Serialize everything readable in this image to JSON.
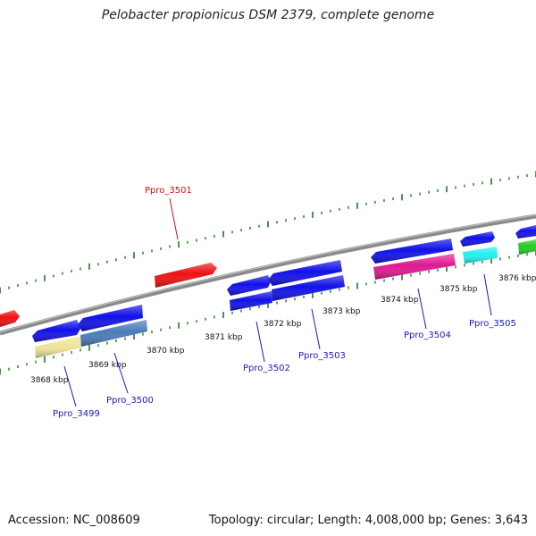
{
  "title": "Pelobacter propionicus DSM 2379, complete genome",
  "footer": {
    "accession": "Accession: NC_008609",
    "summary": "Topology: circular; Length: 4,008,000 bp; Genes: 3,643"
  },
  "kbp_labels": [
    "3868 kbp",
    "3869 kbp",
    "3870 kbp",
    "3871 kbp",
    "3872 kbp",
    "3873 kbp",
    "3874 kbp",
    "3875 kbp",
    "3876 kbp"
  ],
  "gene_labels": [
    {
      "name": "Ppro_3499",
      "color": "#1a1ab0"
    },
    {
      "name": "Ppro_3500",
      "color": "#1a1ab0"
    },
    {
      "name": "Ppro_3501",
      "color": "#cc1111"
    },
    {
      "name": "Ppro_3502",
      "color": "#1a1ab0"
    },
    {
      "name": "Ppro_3503",
      "color": "#1a1ab0"
    },
    {
      "name": "Ppro_3504",
      "color": "#1a1ab0"
    },
    {
      "name": "Ppro_3505",
      "color": "#1a1ab0"
    }
  ],
  "colors": {
    "backbone": "#8a8a8a",
    "ticks": "#1e7a1e",
    "blue_gene": "#1010e8",
    "red_gene": "#ee1111",
    "magenta_gene": "#e01890",
    "cyan_gene": "#22f0f0",
    "green_gene": "#22cc22",
    "khaki_gene": "#f0e49a",
    "steel_gene": "#4a7ab8"
  }
}
